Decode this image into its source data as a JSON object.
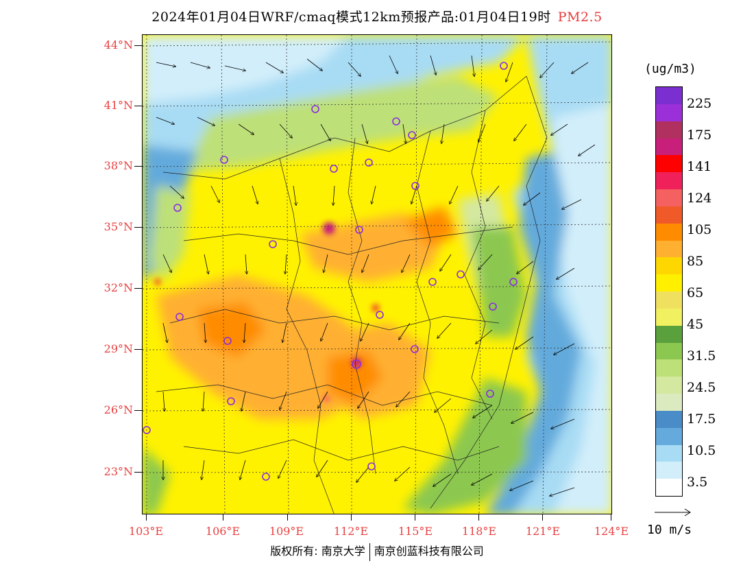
{
  "title": {
    "main": "2024年01月04日WRF/cmaq模式12km预报产品:01月04日19时",
    "pollutant": "PM2.5",
    "pollutant_color": "#e83a3a"
  },
  "map": {
    "lat_labels": [
      "44°N",
      "41°N",
      "38°N",
      "35°N",
      "32°N",
      "29°N",
      "26°N",
      "23°N"
    ],
    "lon_labels": [
      "103°E",
      "106°E",
      "109°E",
      "112°E",
      "115°E",
      "118°E",
      "121°E",
      "124°E"
    ],
    "station_marker_color": "#8a2be2"
  },
  "legend": {
    "unit": "(ug/m3)",
    "bins": [
      {
        "color": "#7b2fd0"
      },
      {
        "color": "#9b30d8"
      },
      {
        "color": "#b03060"
      },
      {
        "color": "#c81f7a"
      },
      {
        "color": "#ff0000"
      },
      {
        "color": "#f0205a"
      },
      {
        "color": "#f56060"
      },
      {
        "color": "#f05a28"
      },
      {
        "color": "#ff8c00"
      },
      {
        "color": "#ffb030"
      },
      {
        "color": "#ffd700"
      },
      {
        "color": "#fff000"
      },
      {
        "color": "#f0e060"
      },
      {
        "color": "#f0f060"
      },
      {
        "color": "#5aa03c"
      },
      {
        "color": "#8cc850"
      },
      {
        "color": "#bee078"
      },
      {
        "color": "#d4e8a0"
      },
      {
        "color": "#dceac0"
      },
      {
        "color": "#4a8cc8"
      },
      {
        "color": "#64aadc"
      },
      {
        "color": "#a8dcf4"
      },
      {
        "color": "#d2eefa"
      },
      {
        "color": "#ffffff"
      }
    ],
    "labels": [
      "225",
      "175",
      "141",
      "124",
      "105",
      "85",
      "65",
      "45",
      "31.5",
      "24.5",
      "17.5",
      "10.5",
      "3.5"
    ]
  },
  "wind_reference": {
    "label": "10 m/s"
  },
  "footer": {
    "left": "版权所有: 南京大学",
    "right": "南京创蓝科技有限公司"
  }
}
